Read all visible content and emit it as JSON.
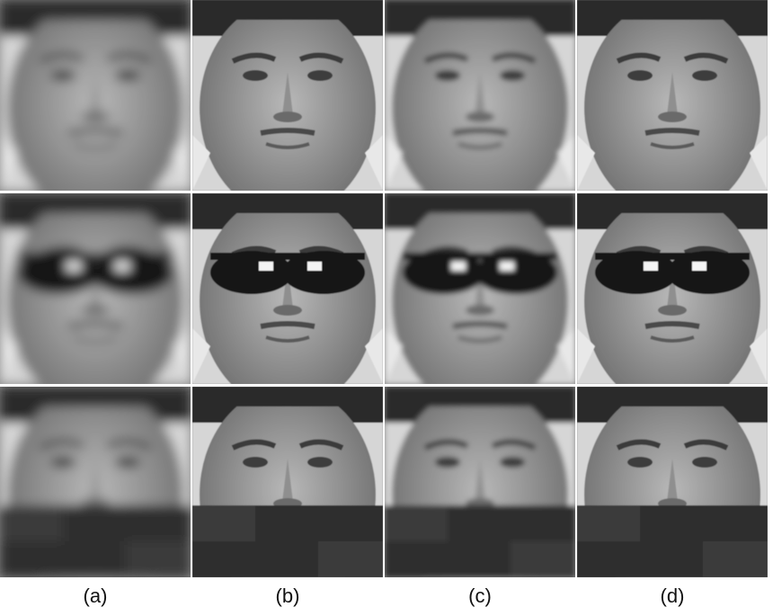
{
  "figure": {
    "columns": [
      {
        "id": "a",
        "caption": "(a)"
      },
      {
        "id": "b",
        "caption": "(b)"
      },
      {
        "id": "c",
        "caption": "(c)"
      },
      {
        "id": "d",
        "caption": "(d)"
      }
    ],
    "rows": [
      {
        "id": "row-1",
        "occlusion": "none"
      },
      {
        "id": "row-2",
        "occlusion": "sunglasses"
      },
      {
        "id": "row-3",
        "occlusion": "scarf"
      }
    ],
    "colors": {
      "background": "#ffffff",
      "skin_light": "#b8b8b8",
      "skin_dark": "#6a6a6a",
      "hair": "#2a2a2a",
      "glasses": "#151515",
      "scarf": "#2e2e2e"
    }
  }
}
